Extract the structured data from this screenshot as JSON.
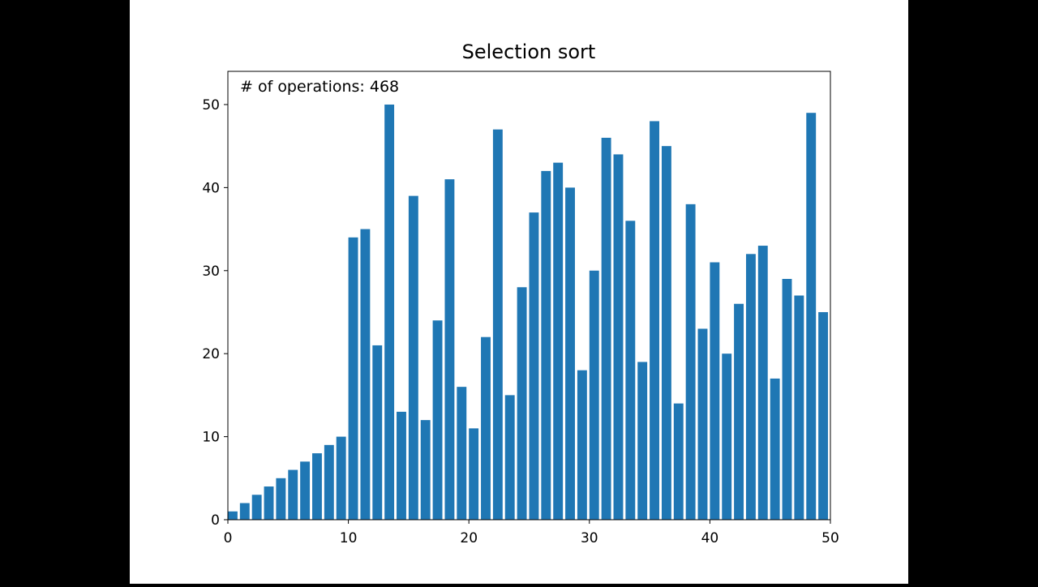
{
  "chart_data": {
    "type": "bar",
    "title": "Selection sort",
    "annotation": "# of operations: 468",
    "xlabel": "",
    "ylabel": "",
    "xlim": [
      0,
      50
    ],
    "ylim": [
      0,
      54
    ],
    "xticks": [
      0,
      10,
      20,
      30,
      40,
      50
    ],
    "yticks": [
      0,
      10,
      20,
      30,
      40,
      50
    ],
    "grid": false,
    "bar_color": "#1f77b4",
    "x": [
      0,
      1,
      2,
      3,
      4,
      5,
      6,
      7,
      8,
      9,
      10,
      11,
      12,
      13,
      14,
      15,
      16,
      17,
      18,
      19,
      20,
      21,
      22,
      23,
      24,
      25,
      26,
      27,
      28,
      29,
      30,
      31,
      32,
      33,
      34,
      35,
      36,
      37,
      38,
      39,
      40,
      41,
      42,
      43,
      44,
      45,
      46,
      47,
      48,
      49
    ],
    "values": [
      1,
      2,
      3,
      4,
      5,
      6,
      7,
      8,
      9,
      10,
      34,
      35,
      21,
      50,
      13,
      39,
      12,
      24,
      41,
      16,
      11,
      22,
      47,
      15,
      28,
      37,
      42,
      43,
      40,
      18,
      30,
      46,
      44,
      36,
      19,
      48,
      45,
      14,
      38,
      23,
      31,
      20,
      26,
      32,
      33,
      17,
      29,
      27,
      49,
      25
    ]
  }
}
